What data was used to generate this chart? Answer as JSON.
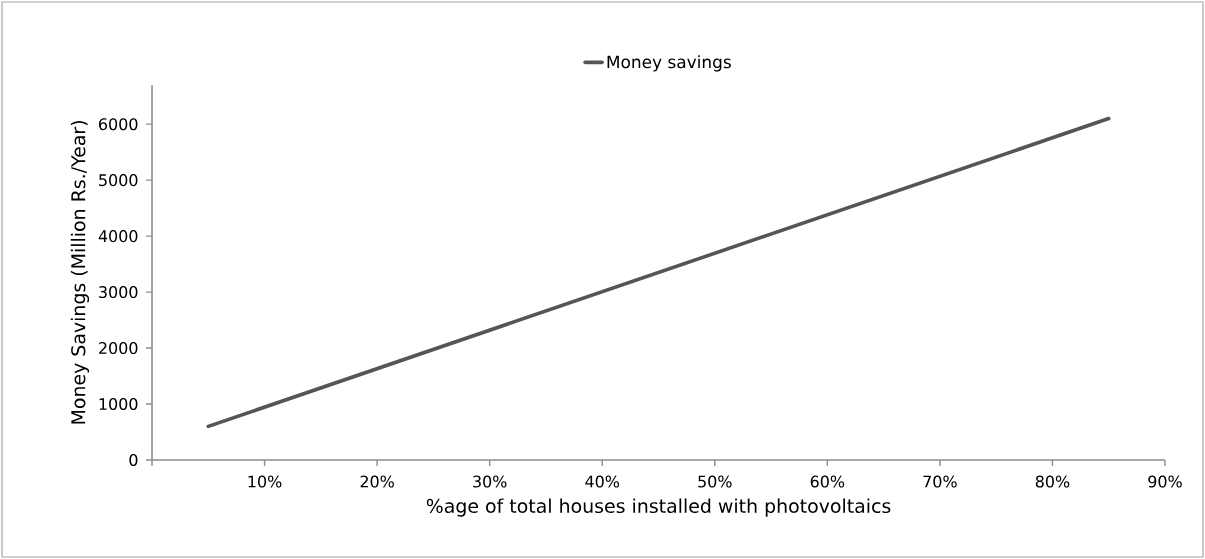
{
  "chart_data": {
    "type": "line",
    "xlabel": "%age of total houses installed with photovoltaics",
    "ylabel": "Money Savings (Million Rs./Year)",
    "x": [
      5,
      85
    ],
    "series": [
      {
        "name": "Money savings",
        "color": "#555555",
        "values": [
          600,
          6100
        ]
      }
    ],
    "xlim": [
      0,
      90
    ],
    "xticks": [
      {
        "value": 0,
        "label": null
      },
      {
        "value": 10,
        "label": "10%"
      },
      {
        "value": 20,
        "label": "20%"
      },
      {
        "value": 30,
        "label": "30%"
      },
      {
        "value": 40,
        "label": "40%"
      },
      {
        "value": 50,
        "label": "50%"
      },
      {
        "value": 60,
        "label": "60%"
      },
      {
        "value": 70,
        "label": "70%"
      },
      {
        "value": 80,
        "label": "80%"
      },
      {
        "value": 90,
        "label": "90%"
      }
    ],
    "ylim": [
      0,
      6700
    ],
    "yticks": [
      0,
      1000,
      2000,
      3000,
      4000,
      5000,
      6000
    ],
    "legend": "top",
    "grid": false
  }
}
